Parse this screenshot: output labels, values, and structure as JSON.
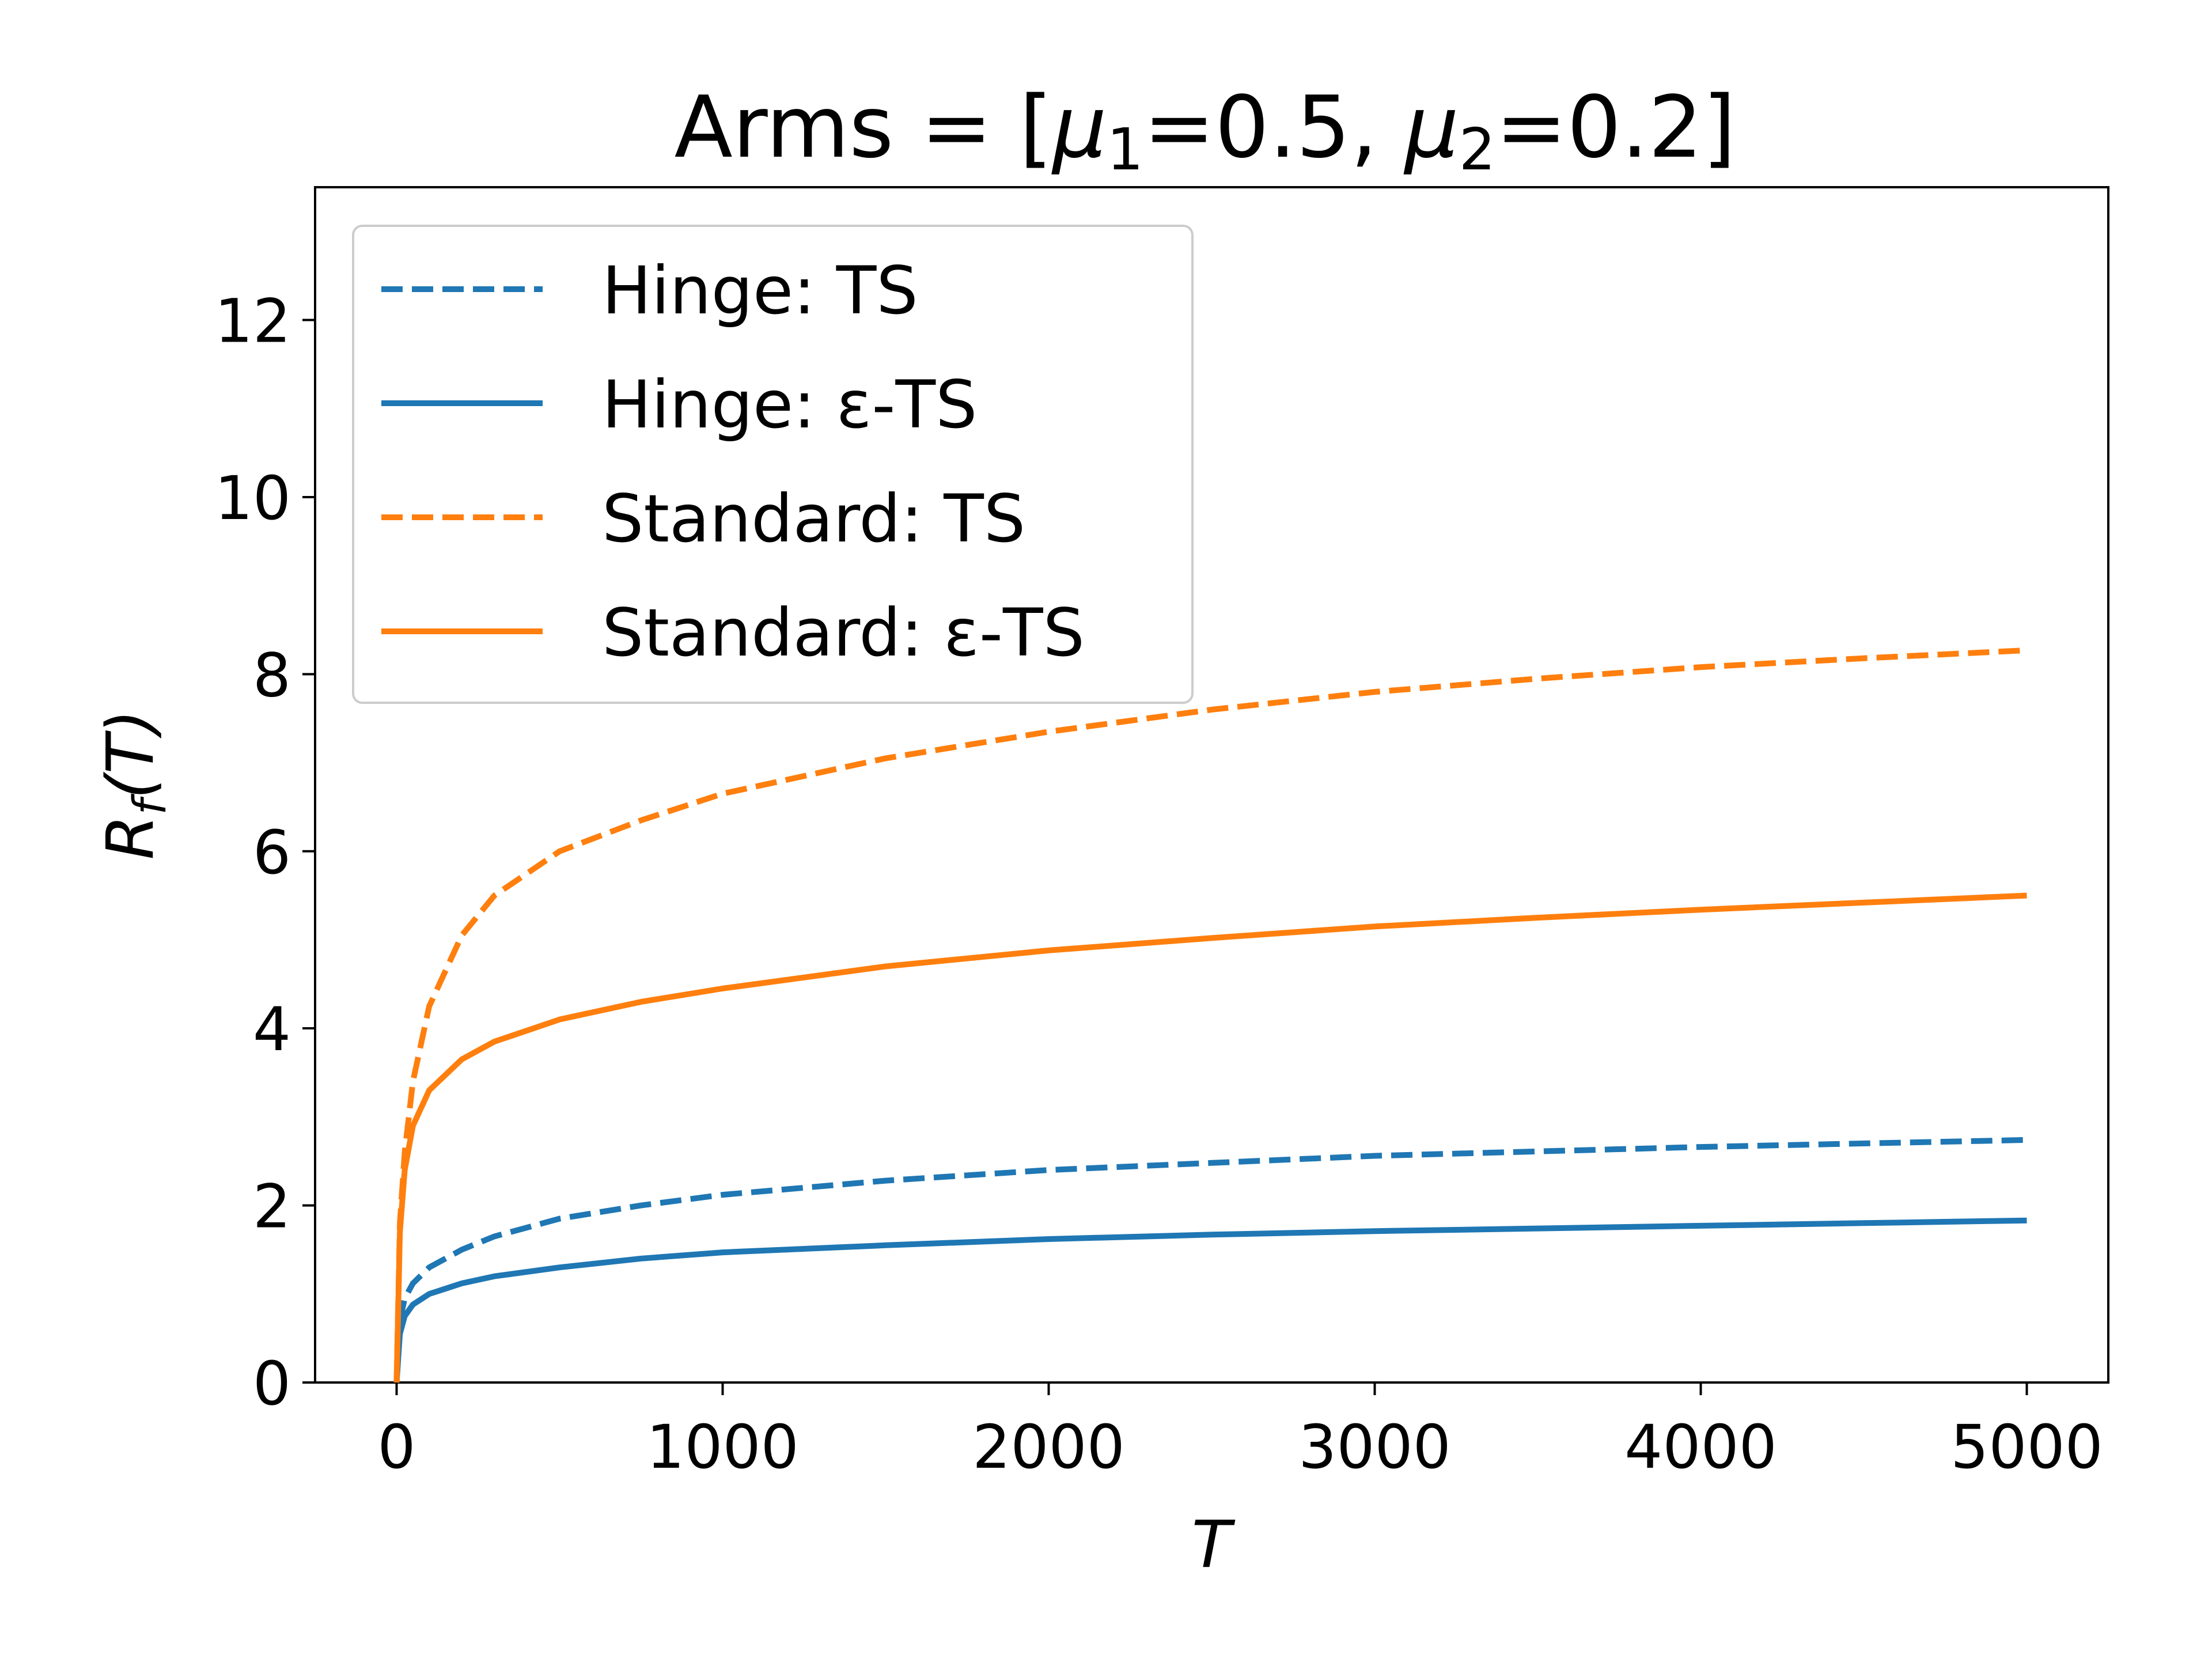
{
  "chart_data": {
    "type": "line",
    "title_parts": {
      "prefix": "Arms = [",
      "mu1_symbol": "μ",
      "mu1_sub": "1",
      "mu1_value": "=0.5, ",
      "mu2_symbol": "μ",
      "mu2_sub": "2",
      "mu2_value": "=0.2]"
    },
    "xlabel": "T",
    "ylabel": {
      "main": "R",
      "sub": "f",
      "arg": "(T)"
    },
    "xlim": [
      -250,
      5250
    ],
    "ylim": [
      0,
      13.5
    ],
    "xticks": [
      0,
      1000,
      2000,
      3000,
      4000,
      5000
    ],
    "yticks": [
      0,
      2,
      4,
      6,
      8,
      10,
      12
    ],
    "legend_position": "upper-left",
    "grid": false,
    "colors": {
      "blue": "#1f77b4",
      "orange": "#ff7f0e"
    },
    "series": [
      {
        "name": "Hinge: TS",
        "color": "#1f77b4",
        "style": "dashed",
        "x": [
          0,
          10,
          25,
          50,
          100,
          200,
          300,
          500,
          750,
          1000,
          1500,
          2000,
          2500,
          3000,
          3500,
          4000,
          4500,
          5000
        ],
        "y": [
          0,
          0.7,
          0.95,
          1.12,
          1.3,
          1.5,
          1.65,
          1.85,
          2.0,
          2.12,
          2.28,
          2.4,
          2.48,
          2.56,
          2.61,
          2.66,
          2.7,
          2.74
        ]
      },
      {
        "name": "Hinge: ε-TS",
        "color": "#1f77b4",
        "style": "solid",
        "x": [
          0,
          10,
          25,
          50,
          100,
          200,
          300,
          500,
          750,
          1000,
          1500,
          2000,
          2500,
          3000,
          3500,
          4000,
          4500,
          5000
        ],
        "y": [
          0,
          0.55,
          0.75,
          0.88,
          1.0,
          1.12,
          1.2,
          1.3,
          1.4,
          1.47,
          1.55,
          1.62,
          1.67,
          1.71,
          1.74,
          1.77,
          1.8,
          1.83
        ]
      },
      {
        "name": "Standard: TS",
        "color": "#ff7f0e",
        "style": "dashed",
        "x": [
          0,
          10,
          25,
          50,
          100,
          200,
          300,
          500,
          750,
          1000,
          1500,
          2000,
          2500,
          3000,
          3500,
          4000,
          4500,
          5000
        ],
        "y": [
          0,
          1.8,
          2.6,
          3.4,
          4.25,
          5.05,
          5.5,
          6.0,
          6.35,
          6.65,
          7.05,
          7.35,
          7.6,
          7.8,
          7.95,
          8.08,
          8.18,
          8.27
        ]
      },
      {
        "name": "Standard: ε-TS",
        "color": "#ff7f0e",
        "style": "solid",
        "x": [
          0,
          10,
          25,
          50,
          100,
          200,
          300,
          500,
          750,
          1000,
          1500,
          2000,
          2500,
          3000,
          3500,
          4000,
          4500,
          5000
        ],
        "y": [
          0,
          1.7,
          2.4,
          2.9,
          3.3,
          3.65,
          3.85,
          4.1,
          4.3,
          4.45,
          4.7,
          4.88,
          5.02,
          5.15,
          5.25,
          5.34,
          5.42,
          5.5
        ]
      }
    ]
  }
}
